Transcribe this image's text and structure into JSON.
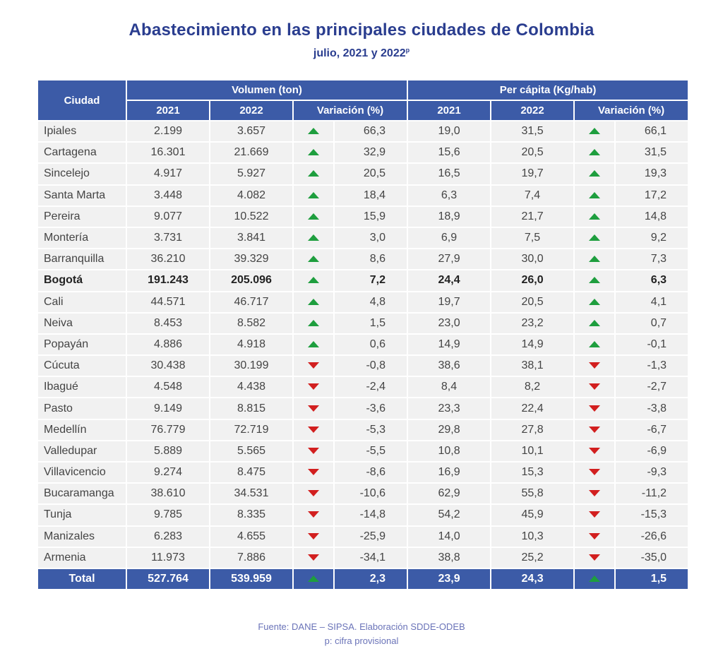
{
  "title": "Abastecimiento en las principales ciudades de Colombia",
  "subtitle": "julio, 2021 y 2022",
  "subtitle_sup": "p",
  "headers": {
    "city": "Ciudad",
    "volume": "Volumen (ton)",
    "per_capita": "Per cápita (Kg/hab)",
    "sub": [
      "2021",
      "2022",
      "Variación (%)",
      "2021",
      "2022",
      "Variación (%)"
    ]
  },
  "colors": {
    "header": "#3c5ba7",
    "up": "#1e9e3e",
    "down": "#d21f1f",
    "title": "#2a3d8f"
  },
  "rows": [
    {
      "city": "Ipiales",
      "v2021": "2.199",
      "v2022": "3.657",
      "vdir": "up",
      "vvar": "66,3",
      "p2021": "19,0",
      "p2022": "31,5",
      "pdir": "up",
      "pvar": "66,1"
    },
    {
      "city": "Cartagena",
      "v2021": "16.301",
      "v2022": "21.669",
      "vdir": "up",
      "vvar": "32,9",
      "p2021": "15,6",
      "p2022": "20,5",
      "pdir": "up",
      "pvar": "31,5"
    },
    {
      "city": "Sincelejo",
      "v2021": "4.917",
      "v2022": "5.927",
      "vdir": "up",
      "vvar": "20,5",
      "p2021": "16,5",
      "p2022": "19,7",
      "pdir": "up",
      "pvar": "19,3"
    },
    {
      "city": "Santa Marta",
      "v2021": "3.448",
      "v2022": "4.082",
      "vdir": "up",
      "vvar": "18,4",
      "p2021": "6,3",
      "p2022": "7,4",
      "pdir": "up",
      "pvar": "17,2"
    },
    {
      "city": "Pereira",
      "v2021": "9.077",
      "v2022": "10.522",
      "vdir": "up",
      "vvar": "15,9",
      "p2021": "18,9",
      "p2022": "21,7",
      "pdir": "up",
      "pvar": "14,8"
    },
    {
      "city": "Montería",
      "v2021": "3.731",
      "v2022": "3.841",
      "vdir": "up",
      "vvar": "3,0",
      "p2021": "6,9",
      "p2022": "7,5",
      "pdir": "up",
      "pvar": "9,2"
    },
    {
      "city": "Barranquilla",
      "v2021": "36.210",
      "v2022": "39.329",
      "vdir": "up",
      "vvar": "8,6",
      "p2021": "27,9",
      "p2022": "30,0",
      "pdir": "up",
      "pvar": "7,3"
    },
    {
      "city": "Bogotá",
      "v2021": "191.243",
      "v2022": "205.096",
      "vdir": "up",
      "vvar": "7,2",
      "p2021": "24,4",
      "p2022": "26,0",
      "pdir": "up",
      "pvar": "6,3",
      "bold": true
    },
    {
      "city": "Cali",
      "v2021": "44.571",
      "v2022": "46.717",
      "vdir": "up",
      "vvar": "4,8",
      "p2021": "19,7",
      "p2022": "20,5",
      "pdir": "up",
      "pvar": "4,1"
    },
    {
      "city": "Neiva",
      "v2021": "8.453",
      "v2022": "8.582",
      "vdir": "up",
      "vvar": "1,5",
      "p2021": "23,0",
      "p2022": "23,2",
      "pdir": "up",
      "pvar": "0,7"
    },
    {
      "city": "Popayán",
      "v2021": "4.886",
      "v2022": "4.918",
      "vdir": "up",
      "vvar": "0,6",
      "p2021": "14,9",
      "p2022": "14,9",
      "pdir": "up",
      "pvar": "-0,1"
    },
    {
      "city": "Cúcuta",
      "v2021": "30.438",
      "v2022": "30.199",
      "vdir": "down",
      "vvar": "-0,8",
      "p2021": "38,6",
      "p2022": "38,1",
      "pdir": "down",
      "pvar": "-1,3"
    },
    {
      "city": "Ibagué",
      "v2021": "4.548",
      "v2022": "4.438",
      "vdir": "down",
      "vvar": "-2,4",
      "p2021": "8,4",
      "p2022": "8,2",
      "pdir": "down",
      "pvar": "-2,7"
    },
    {
      "city": "Pasto",
      "v2021": "9.149",
      "v2022": "8.815",
      "vdir": "down",
      "vvar": "-3,6",
      "p2021": "23,3",
      "p2022": "22,4",
      "pdir": "down",
      "pvar": "-3,8"
    },
    {
      "city": "Medellín",
      "v2021": "76.779",
      "v2022": "72.719",
      "vdir": "down",
      "vvar": "-5,3",
      "p2021": "29,8",
      "p2022": "27,8",
      "pdir": "down",
      "pvar": "-6,7"
    },
    {
      "city": "Valledupar",
      "v2021": "5.889",
      "v2022": "5.565",
      "vdir": "down",
      "vvar": "-5,5",
      "p2021": "10,8",
      "p2022": "10,1",
      "pdir": "down",
      "pvar": "-6,9"
    },
    {
      "city": "Villavicencio",
      "v2021": "9.274",
      "v2022": "8.475",
      "vdir": "down",
      "vvar": "-8,6",
      "p2021": "16,9",
      "p2022": "15,3",
      "pdir": "down",
      "pvar": "-9,3"
    },
    {
      "city": "Bucaramanga",
      "v2021": "38.610",
      "v2022": "34.531",
      "vdir": "down",
      "vvar": "-10,6",
      "p2021": "62,9",
      "p2022": "55,8",
      "pdir": "down",
      "pvar": "-11,2"
    },
    {
      "city": "Tunja",
      "v2021": "9.785",
      "v2022": "8.335",
      "vdir": "down",
      "vvar": "-14,8",
      "p2021": "54,2",
      "p2022": "45,9",
      "pdir": "down",
      "pvar": "-15,3"
    },
    {
      "city": "Manizales",
      "v2021": "6.283",
      "v2022": "4.655",
      "vdir": "down",
      "vvar": "-25,9",
      "p2021": "14,0",
      "p2022": "10,3",
      "pdir": "down",
      "pvar": "-26,6"
    },
    {
      "city": "Armenia",
      "v2021": "11.973",
      "v2022": "7.886",
      "vdir": "down",
      "vvar": "-34,1",
      "p2021": "38,8",
      "p2022": "25,2",
      "pdir": "down",
      "pvar": "-35,0"
    }
  ],
  "total": {
    "city": "Total",
    "v2021": "527.764",
    "v2022": "539.959",
    "vdir": "up",
    "vvar": "2,3",
    "p2021": "23,9",
    "p2022": "24,3",
    "pdir": "up",
    "pvar": "1,5"
  },
  "footer": {
    "source": "Fuente: DANE – SIPSA. Elaboración SDDE-ODEB",
    "note": "p: cifra provisional"
  }
}
